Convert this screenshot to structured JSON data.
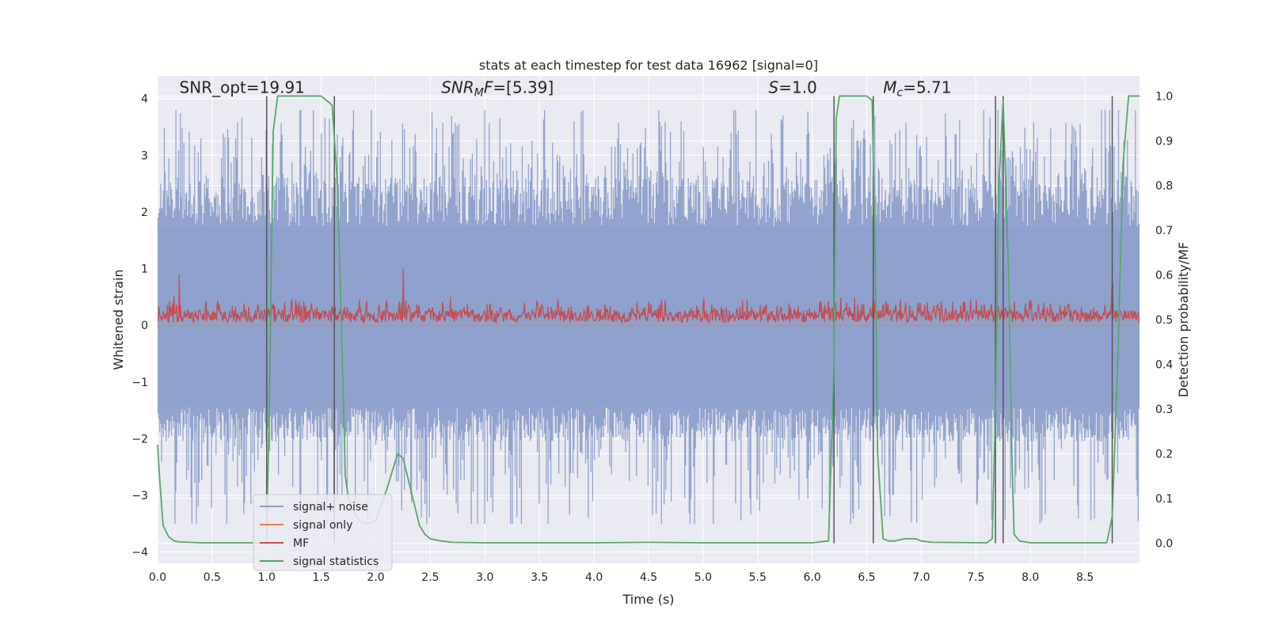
{
  "chart_data": {
    "type": "line",
    "title": "stats at each timestep for test data 16962 [signal=0]",
    "xlabel": "Time (s)",
    "ylabel": "Whitened strain",
    "ylabel_right": "Detection probability/MF",
    "xlim": [
      0,
      9.0
    ],
    "ylim": [
      -4.2,
      4.4
    ],
    "ylim_right": [
      -0.045,
      1.045
    ],
    "x_ticks": [
      0.0,
      0.5,
      1.0,
      1.5,
      2.0,
      2.5,
      3.0,
      3.5,
      4.0,
      4.5,
      5.0,
      5.5,
      6.0,
      6.5,
      7.0,
      7.5,
      8.0,
      8.5
    ],
    "x_tick_labels": [
      "0.0",
      "0.5",
      "1.0",
      "1.5",
      "2.0",
      "2.5",
      "3.0",
      "3.5",
      "4.0",
      "4.5",
      "5.0",
      "5.5",
      "6.0",
      "6.5",
      "7.0",
      "7.5",
      "8.0",
      "8.5"
    ],
    "y_ticks": [
      4,
      3,
      2,
      1,
      0,
      -1,
      -2,
      -3,
      -4
    ],
    "y_tick_labels": [
      "4",
      "3",
      "2",
      "1",
      "0",
      "−1",
      "−2",
      "−3",
      "−4"
    ],
    "y_ticks_right": [
      1.0,
      0.9,
      0.8,
      0.7,
      0.6,
      0.5,
      0.4,
      0.3,
      0.2,
      0.1,
      0.0
    ],
    "y_tick_labels_right": [
      "1.0",
      "0.9",
      "0.8",
      "0.7",
      "0.6",
      "0.5",
      "0.4",
      "0.3",
      "0.2",
      "0.1",
      "0.0"
    ],
    "annotations": [
      {
        "text": "SNR_opt=19.91",
        "x": 0.2,
        "y": 4.1
      },
      {
        "text": "SNR_MF=[5.39]",
        "x": 2.6,
        "y": 4.1
      },
      {
        "text": "S=1.0",
        "x": 5.6,
        "y": 4.1
      },
      {
        "text": "M_c=5.71",
        "x": 6.65,
        "y": 4.1
      }
    ],
    "vertical_markers": [
      1.0,
      1.62,
      6.2,
      6.56,
      7.68,
      7.75,
      8.75
    ],
    "noise": {
      "band": [
        -1.45,
        1.75
      ],
      "extremes": [
        -3.5,
        3.8
      ],
      "mean": 0.0
    },
    "mf": {
      "baseline": 0.18,
      "spread": [
        0.0,
        0.5
      ],
      "peaks": [
        {
          "x": 0.2,
          "y": 0.9
        },
        {
          "x": 2.25,
          "y": 1.0
        },
        {
          "x": 8.75,
          "y": 0.75
        }
      ]
    },
    "series": [
      {
        "name": "signal+ noise",
        "color": "#8da0cb",
        "axis": "left",
        "style": "noise"
      },
      {
        "name": "signal only",
        "color": "#dd8452",
        "axis": "left",
        "values": "flat-zero"
      },
      {
        "name": "MF",
        "color": "#c44e52",
        "axis": "left",
        "style": "mf"
      },
      {
        "name": "signal statistics",
        "color": "#55a868",
        "axis": "right",
        "x": [
          0.0,
          0.02,
          0.05,
          0.1,
          0.15,
          0.2,
          0.3,
          0.4,
          0.5,
          0.7,
          1.0,
          1.03,
          1.06,
          1.1,
          1.15,
          1.2,
          1.5,
          1.6,
          1.65,
          1.7,
          1.72,
          1.75,
          1.8,
          1.85,
          1.9,
          1.95,
          2.0,
          2.1,
          2.2,
          2.25,
          2.3,
          2.35,
          2.4,
          2.45,
          2.5,
          2.6,
          2.7,
          3.0,
          4.0,
          4.5,
          5.0,
          6.0,
          6.15,
          6.2,
          6.22,
          6.25,
          6.3,
          6.5,
          6.55,
          6.58,
          6.6,
          6.65,
          6.7,
          6.75,
          6.85,
          6.95,
          7.0,
          7.1,
          7.6,
          7.65,
          7.68,
          7.71,
          7.75,
          7.8,
          7.83,
          7.85,
          7.9,
          8.0,
          8.5,
          8.7,
          8.75,
          8.8,
          8.85,
          8.9,
          9.0
        ],
        "y": [
          0.22,
          0.14,
          0.04,
          0.015,
          0.005,
          0.003,
          0.002,
          0.001,
          0.001,
          0.001,
          0.001,
          0.4,
          0.92,
          1.0,
          1.0,
          1.0,
          1.0,
          0.98,
          0.8,
          0.35,
          0.15,
          0.1,
          0.07,
          0.05,
          0.045,
          0.045,
          0.05,
          0.12,
          0.2,
          0.19,
          0.14,
          0.09,
          0.04,
          0.02,
          0.01,
          0.005,
          0.002,
          0.001,
          0.001,
          0.002,
          0.001,
          0.001,
          0.005,
          0.4,
          0.95,
          1.0,
          1.0,
          1.0,
          0.99,
          0.6,
          0.2,
          0.01,
          0.005,
          0.005,
          0.01,
          0.01,
          0.005,
          0.002,
          0.001,
          0.01,
          0.3,
          0.8,
          0.99,
          0.6,
          0.2,
          0.02,
          0.005,
          0.001,
          0.001,
          0.001,
          0.06,
          0.4,
          0.85,
          1.0,
          1.0
        ]
      }
    ],
    "legend": {
      "position": "lower-left",
      "entries": [
        "signal+ noise",
        "signal only",
        "MF",
        "signal statistics"
      ]
    },
    "grid": true
  },
  "colors": {
    "axes_bg": "#eaeaf2",
    "grid": "#ffffff",
    "noise": "#8da0cb",
    "signal_only": "#dd8452",
    "mf": "#c44e52",
    "stat": "#55a868",
    "marker": "#555555"
  }
}
